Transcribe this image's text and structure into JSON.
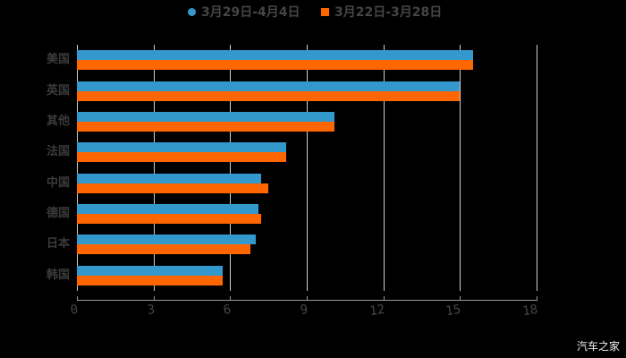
{
  "chart_data": {
    "type": "bar",
    "orientation": "horizontal",
    "title": "",
    "xlabel": "",
    "ylabel": "",
    "categories": [
      "美国",
      "英国",
      "其他",
      "法国",
      "中国",
      "德国",
      "日本",
      "韩国"
    ],
    "series": [
      {
        "name": "3月29日-4月4日",
        "color": "#3399CC",
        "marker": "circle",
        "values": [
          15.5,
          15.0,
          10.1,
          8.2,
          7.2,
          7.1,
          7.0,
          5.7
        ]
      },
      {
        "name": "3月22日-3月28日",
        "color": "#FF6600",
        "marker": "square",
        "values": [
          15.5,
          15.0,
          10.1,
          8.2,
          7.5,
          7.2,
          6.8,
          5.7
        ]
      }
    ],
    "xlim": [
      0,
      18
    ],
    "xticks": [
      0,
      3,
      6,
      9,
      12,
      15,
      18
    ],
    "grid": true,
    "legend_position": "top"
  },
  "legend": {
    "items": [
      {
        "label": "3月29日-4月4日",
        "color": "#3399CC"
      },
      {
        "label": "3月22日-3月28日",
        "color": "#FF6600"
      }
    ]
  },
  "watermark": "汽车之家"
}
